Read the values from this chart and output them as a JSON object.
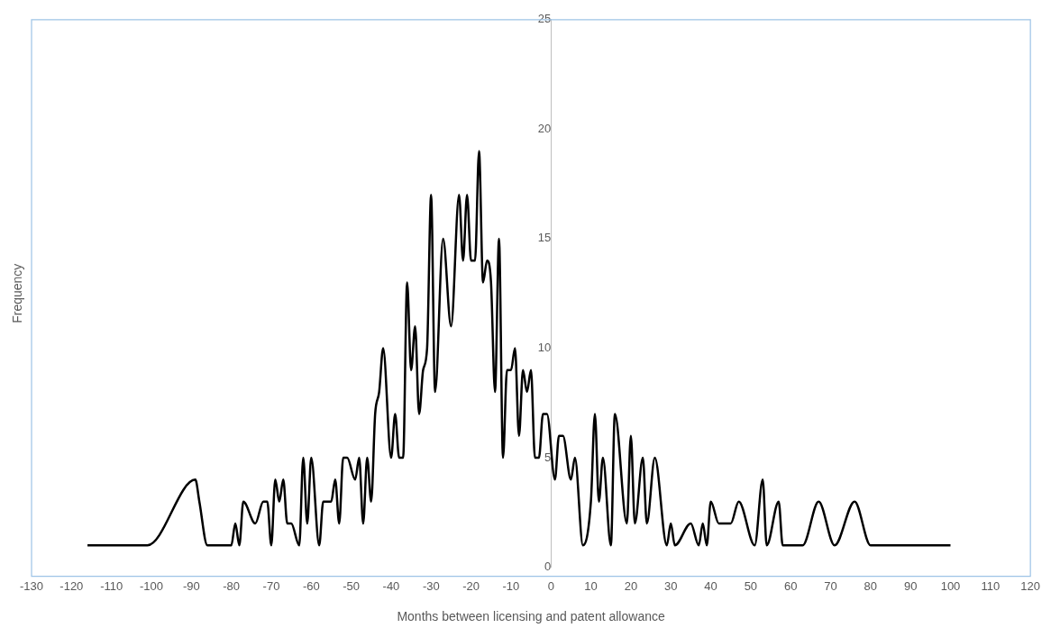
{
  "chart_data": {
    "type": "line",
    "xlabel": "Months between licensing and patent allowance",
    "ylabel": "Frequency",
    "x": [
      -116,
      -101,
      -89,
      -88,
      -86,
      -80,
      -79,
      -78,
      -77,
      -74,
      -72,
      -71,
      -70,
      -69,
      -68,
      -67,
      -66,
      -65,
      -63,
      -62,
      -61,
      -60,
      -58,
      -57,
      -55,
      -54,
      -53,
      -52,
      -51,
      -49,
      -48,
      -47,
      -46,
      -45,
      -44,
      -43,
      -42,
      -40,
      -39,
      -38,
      -37,
      -36,
      -35,
      -34,
      -33,
      -32,
      -31,
      -30,
      -29,
      -27,
      -25,
      -23,
      -22,
      -21,
      -20,
      -19,
      -18,
      -17,
      -16,
      -15,
      -14,
      -13,
      -12,
      -11,
      -10,
      -9,
      -8,
      -7,
      -6,
      -5,
      -4,
      -3,
      -2,
      -1,
      1,
      2,
      3,
      5,
      6,
      8,
      10,
      11,
      12,
      13,
      15,
      16,
      19,
      20,
      21,
      23,
      24,
      26,
      29,
      30,
      31,
      35,
      37,
      38,
      39,
      40,
      42,
      45,
      47,
      51,
      53,
      54,
      57,
      58,
      63,
      67,
      71,
      76,
      80,
      85,
      100
    ],
    "values": [
      1,
      1,
      4,
      3,
      1,
      1,
      2,
      1,
      3,
      2,
      3,
      3,
      1,
      4,
      3,
      4,
      2,
      2,
      1,
      5,
      2,
      5,
      1,
      3,
      3,
      4,
      2,
      5,
      5,
      4,
      5,
      2,
      5,
      3,
      7,
      8,
      10,
      5,
      7,
      5,
      5,
      13,
      9,
      11,
      7,
      9,
      10,
      17,
      8,
      15,
      11,
      17,
      14,
      17,
      14,
      14,
      19,
      13,
      14,
      13,
      8,
      15,
      5,
      9,
      9,
      10,
      6,
      9,
      8,
      9,
      5,
      5,
      7,
      7,
      4,
      6,
      6,
      4,
      5,
      1,
      3,
      7,
      3,
      5,
      1,
      7,
      2,
      6,
      2,
      5,
      2,
      5,
      1,
      2,
      1,
      2,
      1,
      2,
      1,
      3,
      2,
      2,
      3,
      1,
      4,
      1,
      3,
      1,
      1,
      3,
      1,
      3,
      1,
      1,
      1
    ],
    "color": "#000000",
    "xlim": [
      -130,
      120
    ],
    "xticks": [
      -130,
      -120,
      -110,
      -100,
      -90,
      -80,
      -70,
      -60,
      -50,
      -40,
      -30,
      -20,
      -10,
      0,
      10,
      20,
      30,
      40,
      50,
      60,
      70,
      80,
      90,
      100,
      110,
      120
    ],
    "ylim": [
      0,
      25
    ],
    "yticks": [
      0,
      5,
      10,
      15,
      20,
      25
    ],
    "grid": false,
    "marker": "none",
    "line_style": "solid"
  }
}
